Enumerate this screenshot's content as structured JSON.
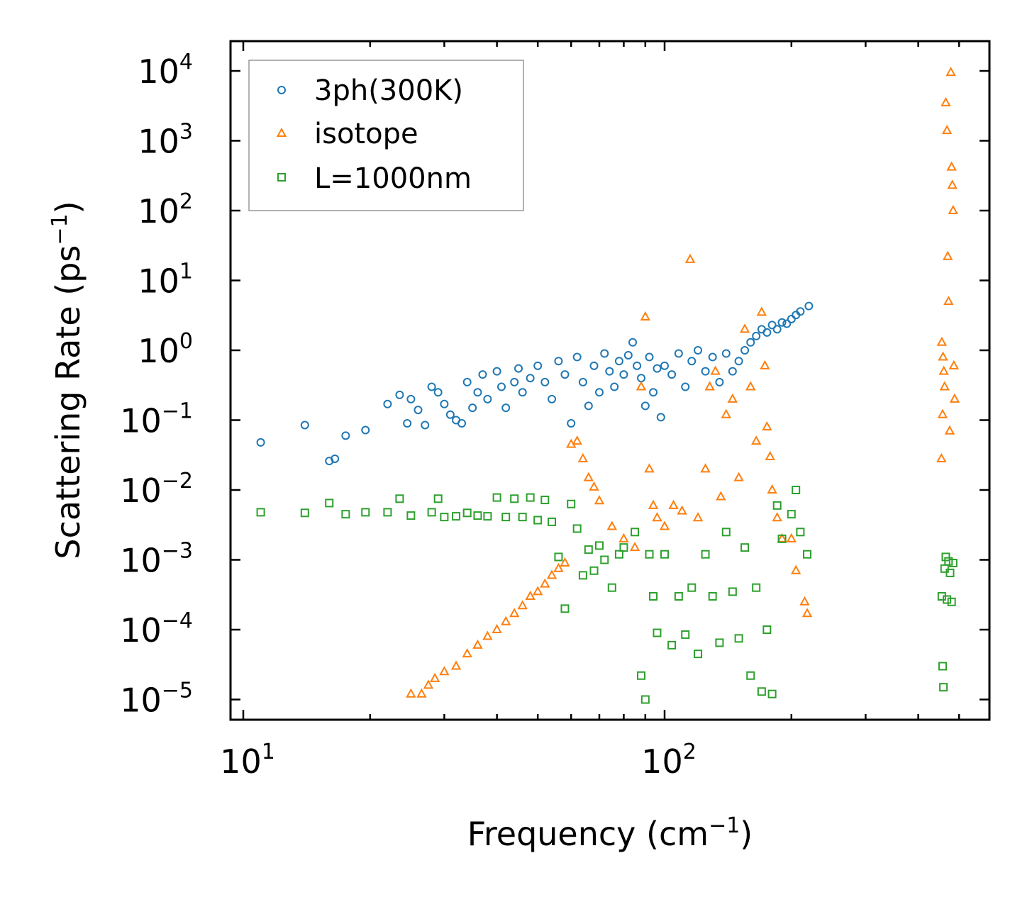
{
  "chart_data": {
    "type": "scatter",
    "title": "",
    "xlabel": "Frequency (cm",
    "xlabel_exp": "−1",
    "xlabel_close": ")",
    "ylabel": "Scattering Rate (ps",
    "ylabel_exp": "−1",
    "ylabel_close": ")",
    "xscale": "log",
    "yscale": "log",
    "xlim": [
      9.0,
      600
    ],
    "ylim": [
      5e-06,
      30000
    ],
    "x_ticks": [
      {
        "base": "10",
        "exp": "1",
        "value": 10
      },
      {
        "base": "10",
        "exp": "2",
        "value": 100
      }
    ],
    "y_ticks": [
      {
        "base": "10",
        "exp": "4",
        "value": 10000
      },
      {
        "base": "10",
        "exp": "3",
        "value": 1000
      },
      {
        "base": "10",
        "exp": "2",
        "value": 100
      },
      {
        "base": "10",
        "exp": "1",
        "value": 10
      },
      {
        "base": "10",
        "exp": "0",
        "value": 1
      },
      {
        "base": "10",
        "exp": "−1",
        "value": 0.1
      },
      {
        "base": "10",
        "exp": "−2",
        "value": 0.01
      },
      {
        "base": "10",
        "exp": "−3",
        "value": 0.001
      },
      {
        "base": "10",
        "exp": "−4",
        "value": 0.0001
      },
      {
        "base": "10",
        "exp": "−5",
        "value": 1e-05
      }
    ],
    "legend_position": "top-left",
    "series": [
      {
        "name": "3ph(300K)",
        "marker": "circle",
        "color": "#1f77b4",
        "points": [
          [
            11,
            0.048
          ],
          [
            14,
            0.085
          ],
          [
            16,
            0.026
          ],
          [
            16.5,
            0.028
          ],
          [
            17.5,
            0.06
          ],
          [
            19.5,
            0.072
          ],
          [
            22,
            0.17
          ],
          [
            23.5,
            0.23
          ],
          [
            24.5,
            0.09
          ],
          [
            25,
            0.2
          ],
          [
            26,
            0.14
          ],
          [
            27,
            0.085
          ],
          [
            28,
            0.3
          ],
          [
            29,
            0.25
          ],
          [
            30,
            0.17
          ],
          [
            31,
            0.12
          ],
          [
            32,
            0.1
          ],
          [
            33,
            0.09
          ],
          [
            34,
            0.35
          ],
          [
            35,
            0.15
          ],
          [
            36,
            0.25
          ],
          [
            37,
            0.45
          ],
          [
            38,
            0.2
          ],
          [
            40,
            0.5
          ],
          [
            41,
            0.3
          ],
          [
            42,
            0.15
          ],
          [
            44,
            0.35
          ],
          [
            45,
            0.55
          ],
          [
            46,
            0.25
          ],
          [
            48,
            0.4
          ],
          [
            50,
            0.6
          ],
          [
            52,
            0.35
          ],
          [
            54,
            0.2
          ],
          [
            56,
            0.7
          ],
          [
            58,
            0.45
          ],
          [
            60,
            0.09
          ],
          [
            62,
            0.8
          ],
          [
            64,
            0.35
          ],
          [
            66,
            0.16
          ],
          [
            68,
            0.6
          ],
          [
            70,
            0.25
          ],
          [
            72,
            0.9
          ],
          [
            74,
            0.5
          ],
          [
            76,
            0.3
          ],
          [
            78,
            0.7
          ],
          [
            80,
            0.45
          ],
          [
            82,
            0.85
          ],
          [
            84,
            1.3
          ],
          [
            86,
            0.6
          ],
          [
            88,
            0.4
          ],
          [
            90,
            0.16
          ],
          [
            92,
            0.8
          ],
          [
            94,
            0.25
          ],
          [
            96,
            0.55
          ],
          [
            98,
            0.11
          ],
          [
            100,
            0.6
          ],
          [
            104,
            0.45
          ],
          [
            108,
            0.9
          ],
          [
            112,
            0.3
          ],
          [
            116,
            0.7
          ],
          [
            120,
            1.0
          ],
          [
            125,
            0.5
          ],
          [
            130,
            0.8
          ],
          [
            135,
            0.35
          ],
          [
            140,
            0.9
          ],
          [
            145,
            0.5
          ],
          [
            150,
            0.7
          ],
          [
            155,
            1.0
          ],
          [
            160,
            1.3
          ],
          [
            165,
            1.6
          ],
          [
            170,
            2.0
          ],
          [
            175,
            1.8
          ],
          [
            180,
            2.3
          ],
          [
            185,
            2.0
          ],
          [
            190,
            2.5
          ],
          [
            195,
            2.4
          ],
          [
            200,
            2.8
          ],
          [
            205,
            3.2
          ],
          [
            210,
            3.6
          ],
          [
            220,
            4.3
          ]
        ]
      },
      {
        "name": "isotope",
        "marker": "triangle",
        "color": "#ff7f0e",
        "points": [
          [
            25,
            1.2e-05
          ],
          [
            26.5,
            1.2e-05
          ],
          [
            27.5,
            1.6e-05
          ],
          [
            28.5,
            2e-05
          ],
          [
            30,
            2.5e-05
          ],
          [
            32,
            3e-05
          ],
          [
            34,
            4.5e-05
          ],
          [
            36,
            6e-05
          ],
          [
            38,
            8e-05
          ],
          [
            40,
            0.0001
          ],
          [
            42,
            0.00013
          ],
          [
            44,
            0.00017
          ],
          [
            46,
            0.00022
          ],
          [
            48,
            0.0003
          ],
          [
            50,
            0.00035
          ],
          [
            52,
            0.00045
          ],
          [
            54,
            0.0006
          ],
          [
            56,
            0.00075
          ],
          [
            58,
            0.0009
          ],
          [
            60,
            0.045
          ],
          [
            62,
            0.05
          ],
          [
            64,
            0.028
          ],
          [
            66,
            0.015
          ],
          [
            68,
            0.011
          ],
          [
            70,
            0.007
          ],
          [
            75,
            0.003
          ],
          [
            80,
            0.002
          ],
          [
            85,
            0.0015
          ],
          [
            88,
            0.3
          ],
          [
            90,
            3.0
          ],
          [
            92,
            0.02
          ],
          [
            94,
            0.006
          ],
          [
            96,
            0.004
          ],
          [
            100,
            0.003
          ],
          [
            105,
            0.006
          ],
          [
            110,
            0.005
          ],
          [
            115,
            20
          ],
          [
            120,
            0.004
          ],
          [
            125,
            0.02
          ],
          [
            128,
            0.3
          ],
          [
            132,
            0.5
          ],
          [
            136,
            0.008
          ],
          [
            140,
            0.12
          ],
          [
            145,
            0.2
          ],
          [
            150,
            0.015
          ],
          [
            155,
            2.0
          ],
          [
            160,
            0.3
          ],
          [
            165,
            0.05
          ],
          [
            170,
            3.5
          ],
          [
            173,
            0.6
          ],
          [
            175,
            0.08
          ],
          [
            178,
            0.03
          ],
          [
            180,
            0.01
          ],
          [
            185,
            0.004
          ],
          [
            190,
            0.002
          ],
          [
            200,
            0.002
          ],
          [
            205,
            0.0007
          ],
          [
            215,
            0.00025
          ],
          [
            218,
            0.00017
          ],
          [
            455,
            1.3
          ],
          [
            458,
            0.8
          ],
          [
            460,
            0.5
          ],
          [
            462,
            0.3
          ],
          [
            465,
            3500
          ],
          [
            468,
            1400
          ],
          [
            470,
            22
          ],
          [
            472,
            5.0
          ],
          [
            475,
            0.07
          ],
          [
            478,
            9500
          ],
          [
            480,
            420
          ],
          [
            482,
            230
          ],
          [
            484,
            100
          ],
          [
            486,
            0.6
          ],
          [
            488,
            0.2
          ],
          [
            454,
            0.028
          ],
          [
            457,
            0.12
          ]
        ]
      },
      {
        "name": "L=1000nm",
        "marker": "square",
        "color": "#2ca02c",
        "points": [
          [
            11,
            0.0048
          ],
          [
            14,
            0.0047
          ],
          [
            16,
            0.0065
          ],
          [
            17.5,
            0.0045
          ],
          [
            19.5,
            0.0048
          ],
          [
            22,
            0.0048
          ],
          [
            23.5,
            0.0075
          ],
          [
            25,
            0.0043
          ],
          [
            28,
            0.0048
          ],
          [
            29,
            0.0075
          ],
          [
            30,
            0.0041
          ],
          [
            32,
            0.0042
          ],
          [
            34,
            0.0047
          ],
          [
            36,
            0.0043
          ],
          [
            38,
            0.0042
          ],
          [
            40,
            0.0078
          ],
          [
            42,
            0.0041
          ],
          [
            44,
            0.0075
          ],
          [
            46,
            0.0041
          ],
          [
            48,
            0.0078
          ],
          [
            50,
            0.0037
          ],
          [
            52,
            0.0072
          ],
          [
            54,
            0.0035
          ],
          [
            56,
            0.0011
          ],
          [
            58,
            0.0002
          ],
          [
            60,
            0.0063
          ],
          [
            62,
            0.0028
          ],
          [
            64,
            0.0006
          ],
          [
            66,
            0.0014
          ],
          [
            68,
            0.0007
          ],
          [
            70,
            0.0016
          ],
          [
            72,
            0.001
          ],
          [
            75,
            0.0004
          ],
          [
            78,
            0.0012
          ],
          [
            80,
            0.0015
          ],
          [
            85,
            0.0025
          ],
          [
            88,
            2.2e-05
          ],
          [
            90,
            1e-05
          ],
          [
            92,
            0.0012
          ],
          [
            94,
            0.0003
          ],
          [
            96,
            9e-05
          ],
          [
            100,
            0.0012
          ],
          [
            104,
            6e-05
          ],
          [
            108,
            0.0003
          ],
          [
            112,
            8.5e-05
          ],
          [
            116,
            0.0004
          ],
          [
            120,
            4.5e-05
          ],
          [
            125,
            0.0012
          ],
          [
            130,
            0.0003
          ],
          [
            135,
            6.5e-05
          ],
          [
            140,
            0.0025
          ],
          [
            145,
            0.00035
          ],
          [
            150,
            7.5e-05
          ],
          [
            155,
            0.0015
          ],
          [
            160,
            2.2e-05
          ],
          [
            165,
            0.0004
          ],
          [
            170,
            1.3e-05
          ],
          [
            175,
            0.0001
          ],
          [
            180,
            1.2e-05
          ],
          [
            185,
            0.006
          ],
          [
            190,
            0.002
          ],
          [
            200,
            0.0045
          ],
          [
            205,
            0.01
          ],
          [
            210,
            0.0025
          ],
          [
            218,
            0.0012
          ],
          [
            455,
            0.0003
          ],
          [
            457,
            3e-05
          ],
          [
            459,
            1.5e-05
          ],
          [
            462,
            0.00075
          ],
          [
            465,
            0.0011
          ],
          [
            468,
            0.00027
          ],
          [
            472,
            0.00095
          ],
          [
            476,
            0.00065
          ],
          [
            480,
            0.00025
          ],
          [
            484,
            0.0009
          ]
        ]
      }
    ]
  }
}
